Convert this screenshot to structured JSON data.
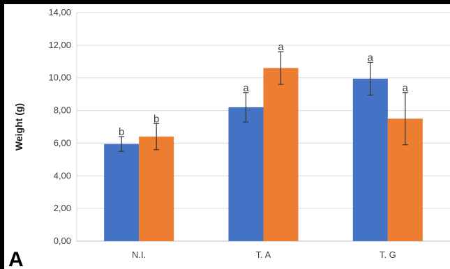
{
  "chart_data": {
    "type": "bar",
    "title": "",
    "xlabel": "",
    "ylabel": "Weight (g)",
    "panel_label": "A",
    "categories": [
      "N.I.",
      "T. A",
      "T. G"
    ],
    "ylim": [
      0,
      14
    ],
    "yticks": [
      "0,00",
      "2,00",
      "4,00",
      "6,00",
      "8,00",
      "10,00",
      "12,00",
      "14,00"
    ],
    "grid": true,
    "legend": "none",
    "series": [
      {
        "color": "#4472c4",
        "values": [
          5.95,
          8.2,
          9.95
        ],
        "errors": [
          0.45,
          0.9,
          1.0
        ],
        "letters": [
          "b",
          "a",
          "a"
        ]
      },
      {
        "color": "#ed7d31",
        "values": [
          6.4,
          10.6,
          7.5
        ],
        "errors": [
          0.8,
          1.0,
          1.6
        ],
        "letters": [
          "b",
          "a",
          "a"
        ]
      }
    ]
  }
}
